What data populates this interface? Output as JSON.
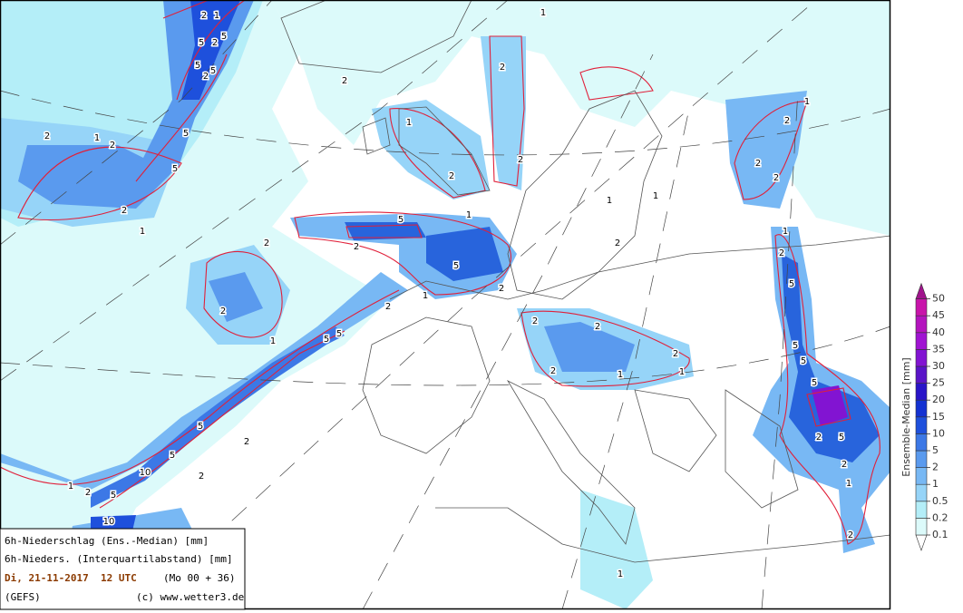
{
  "info_box": {
    "line1": "6h-Niederschlag (Ens.-Median) [mm]",
    "line2": "6h-Nieders. (Interquartilabstand) [mm]",
    "date": "Di, 21-11-2017  12 UTC",
    "run": "(Mo 00 + 36)",
    "model": "(GEFS)",
    "credit": "(c) www.wetter3.de"
  },
  "colorbar": {
    "label": "Ensemble-Median [mm]",
    "levels": [
      0.1,
      0.2,
      0.5,
      1,
      2,
      5,
      10,
      15,
      20,
      25,
      30,
      35,
      40,
      45,
      50
    ],
    "colors": [
      "#ffffff",
      "#dcfafa",
      "#b4eef8",
      "#96d4f8",
      "#78b8f4",
      "#5a9aee",
      "#3c78e6",
      "#1e50dc",
      "#1432d2",
      "#2814c8",
      "#5a14c8",
      "#8214d2",
      "#a014d2",
      "#b414be",
      "#c814aa",
      "#a0148c"
    ]
  },
  "contour_labels": [
    "2",
    "1",
    "5",
    "2",
    "5",
    "5",
    "5",
    "2",
    "1",
    "2",
    "2",
    "5",
    "5",
    "2",
    "1",
    "2",
    "2",
    "1",
    "2",
    "1",
    "5",
    "5",
    "5",
    "2",
    "5",
    "2",
    "1",
    "2",
    "1",
    "2",
    "1",
    "2",
    "2",
    "2",
    "2",
    "2",
    "1",
    "2",
    "1",
    "2",
    "2",
    "2",
    "1",
    "2",
    "5",
    "5",
    "5",
    "5",
    "2",
    "5",
    "2",
    "1",
    "2",
    "5",
    "10",
    "2",
    "5",
    "2",
    "1",
    "2",
    "5",
    "10",
    "1",
    "1",
    "1",
    "2",
    "1"
  ]
}
